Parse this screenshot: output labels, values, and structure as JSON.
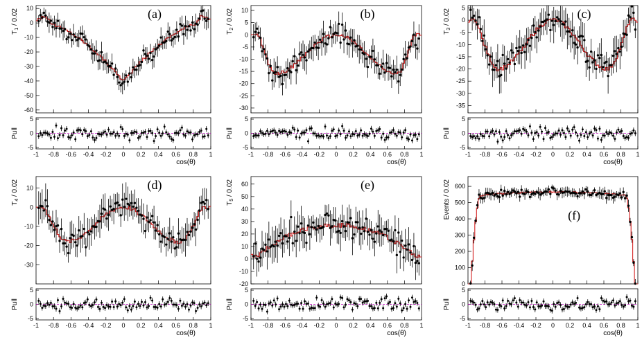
{
  "chart_data": [
    {
      "type": "scatter",
      "label": "(a)",
      "ylabel": "T",
      "ylabel_sub": "1",
      "ylabel_suffix": " / 0.02",
      "xlabel": "cos(θ)",
      "pull_label": "Pull",
      "xlim": [
        -1,
        1
      ],
      "ylim": [
        -62,
        12
      ],
      "yticks": [
        "10",
        "0",
        "-10",
        "-20",
        "-30",
        "-40",
        "-50",
        "-60"
      ],
      "xticks": [
        "-1",
        "-0.8",
        "-0.6",
        "-0.4",
        "-0.2",
        "0",
        "0.2",
        "0.4",
        "0.6",
        "0.8",
        "1"
      ],
      "pull_yticks": [
        "5",
        "0",
        "-5"
      ],
      "shape": "bowl",
      "edge": 0,
      "depth": -40,
      "edge_bump": 5,
      "noise": 5,
      "fit_offset": 0,
      "series": [
        {
          "name": "data",
          "color": "#000000"
        },
        {
          "name": "fit",
          "color": "#d42020"
        }
      ]
    },
    {
      "type": "scatter",
      "label": "(b)",
      "ylabel": "T",
      "ylabel_sub": "2",
      "ylabel_suffix": " / 0.02",
      "xlabel": "cos(θ)",
      "pull_label": "Pull",
      "xlim": [
        -1,
        1
      ],
      "ylim": [
        -32,
        12
      ],
      "yticks": [
        "10",
        "5",
        "0",
        "-5",
        "-10",
        "-15",
        "-20",
        "-25",
        "-30"
      ],
      "xticks": [
        "-1",
        "-0.8",
        "-0.6",
        "-0.4",
        "-0.2",
        "0",
        "0.2",
        "0.4",
        "0.6",
        "0.8",
        "1"
      ],
      "pull_yticks": [
        "5",
        "0",
        "-5"
      ],
      "shape": "double",
      "center": 0,
      "dip": -16,
      "dip_pos": 0.72,
      "edge": 0,
      "noise": 4,
      "series": [
        {
          "name": "data",
          "color": "#000000"
        },
        {
          "name": "fit",
          "color": "#d42020"
        }
      ]
    },
    {
      "type": "scatter",
      "label": "(c)",
      "ylabel": "T",
      "ylabel_sub": "3",
      "ylabel_suffix": " / 0.02",
      "xlabel": "cos(θ)",
      "pull_label": "Pull",
      "xlim": [
        -1,
        1
      ],
      "ylim": [
        -38,
        6
      ],
      "yticks": [
        "5",
        "0",
        "-5",
        "-10",
        "-15",
        "-20",
        "-25",
        "-30",
        "-35"
      ],
      "xticks": [
        "-1",
        "-0.8",
        "-0.6",
        "-0.4",
        "-0.2",
        "0",
        "0.2",
        "0.4",
        "0.6",
        "0.8",
        "1"
      ],
      "pull_yticks": [
        "5",
        "0",
        "-5"
      ],
      "shape": "double",
      "center": 0,
      "dip": -20,
      "dip_pos": 0.65,
      "edge": 0,
      "noise": 5,
      "series": [
        {
          "name": "data",
          "color": "#000000"
        },
        {
          "name": "fit",
          "color": "#d42020"
        }
      ]
    },
    {
      "type": "scatter",
      "label": "(d)",
      "ylabel": "T",
      "ylabel_sub": "4",
      "ylabel_suffix": " / 0.02",
      "xlabel": "cos(θ)",
      "pull_label": "Pull",
      "xlim": [
        -1,
        1
      ],
      "ylim": [
        -40,
        16
      ],
      "yticks": [
        "10",
        "0",
        "-10",
        "-20",
        "-30"
      ],
      "xticks": [
        "-1",
        "-0.8",
        "-0.6",
        "-0.4",
        "-0.2",
        "0",
        "0.2",
        "0.4",
        "0.6",
        "0.8",
        "1"
      ],
      "pull_yticks": [
        "5",
        "0",
        "-5"
      ],
      "shape": "double",
      "center": 0,
      "dip": -18,
      "dip_pos": 0.65,
      "edge": 0,
      "noise": 6,
      "series": [
        {
          "name": "data",
          "color": "#000000"
        },
        {
          "name": "fit",
          "color": "#d42020"
        }
      ]
    },
    {
      "type": "scatter",
      "label": "(e)",
      "ylabel": "T",
      "ylabel_sub": "5",
      "ylabel_suffix": " / 0.02",
      "xlabel": "cos(θ)",
      "pull_label": "Pull",
      "xlim": [
        -1,
        1
      ],
      "ylim": [
        -20,
        66
      ],
      "yticks": [
        "60",
        "50",
        "40",
        "30",
        "20",
        "10",
        "0",
        "-10",
        "-20"
      ],
      "xticks": [
        "-1",
        "-0.8",
        "-0.6",
        "-0.4",
        "-0.2",
        "0",
        "0.2",
        "0.4",
        "0.6",
        "0.8",
        "1"
      ],
      "pull_yticks": [
        "5",
        "0",
        "-5"
      ],
      "shape": "hill",
      "center": 27,
      "edge": 2,
      "noise": 10,
      "series": [
        {
          "name": "data",
          "color": "#000000"
        },
        {
          "name": "fit",
          "color": "#d42020"
        }
      ]
    },
    {
      "type": "scatter",
      "label": "(f)",
      "ylabel": "Events",
      "ylabel_sub": "",
      "ylabel_suffix": " / 0.02",
      "xlabel": "cos(θ)",
      "pull_label": "Pull",
      "xlim": [
        -1,
        1
      ],
      "ylim": [
        0,
        660
      ],
      "yticks": [
        "600",
        "500",
        "400",
        "300",
        "200",
        "100",
        "0"
      ],
      "xticks": [
        "-1",
        "-0.8",
        "-0.6",
        "-0.4",
        "-0.2",
        "0",
        "0.2",
        "0.4",
        "0.6",
        "0.8",
        "1"
      ],
      "pull_yticks": [
        "5",
        "0",
        "-5"
      ],
      "shape": "plateau",
      "center": 565,
      "edge": 0,
      "noise": 25,
      "series": [
        {
          "name": "data",
          "color": "#000000"
        },
        {
          "name": "fit",
          "color": "#d42020"
        }
      ]
    }
  ],
  "colors": {
    "axis": "#000000",
    "fit": "#d42020",
    "pull_line": "#c000c0",
    "points": "#000000"
  }
}
